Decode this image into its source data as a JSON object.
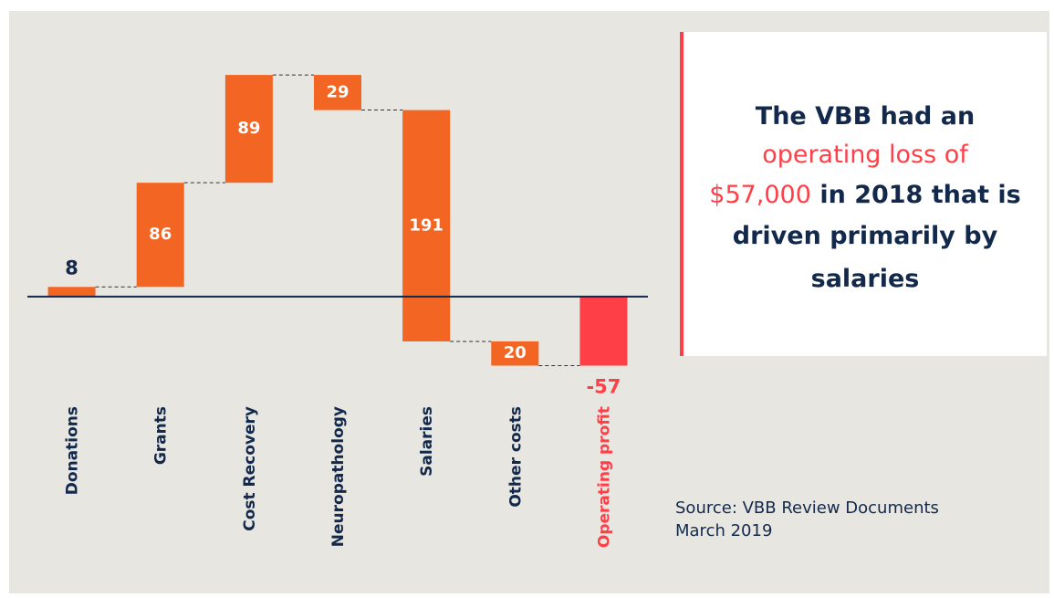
{
  "chart_data": {
    "type": "waterfall",
    "categories": [
      "Donations",
      "Grants",
      "Cost Recovery",
      "Neuropathology",
      "Salaries",
      "Other costs",
      "Operating profit"
    ],
    "values": [
      8,
      86,
      89,
      -29,
      -191,
      -20,
      -57
    ],
    "value_labels": [
      "8",
      "86",
      "89",
      "29",
      "191",
      "20",
      "-57"
    ],
    "is_total": [
      false,
      false,
      false,
      false,
      false,
      false,
      true
    ],
    "color": "#f26522",
    "total_color": "#ff3f48",
    "ylim": [
      -80,
      220
    ],
    "annotation": [
      [
        {
          "text": "The VBB had an",
          "color": "#13294b"
        }
      ],
      [
        {
          "text": "operating loss of",
          "color": "#ff3f48"
        }
      ],
      [
        {
          "text": "$57,000",
          "color": "#ff3f48"
        },
        {
          "text": " in 2018 that is",
          "color": "#13294b"
        }
      ],
      [
        {
          "text": "driven primarily by",
          "color": "#13294b"
        }
      ],
      [
        {
          "text": "salaries",
          "color": "#13294b"
        }
      ]
    ],
    "source": [
      "Source: VBB Review Documents",
      "March 2019"
    ]
  }
}
